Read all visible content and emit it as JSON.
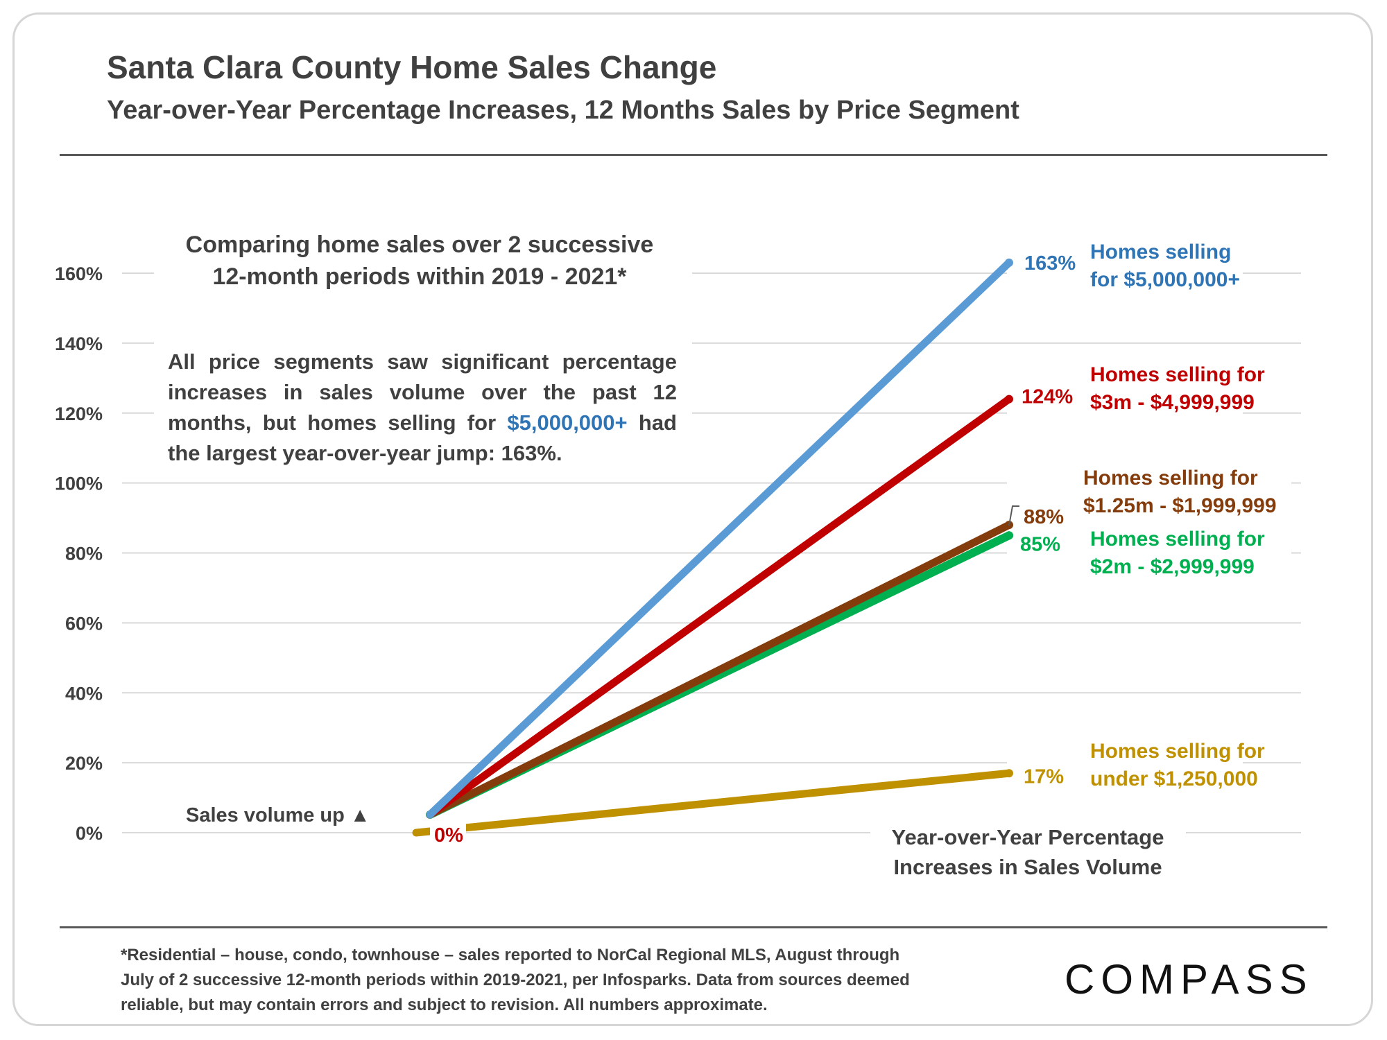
{
  "header": {
    "title": "Santa Clara County Home Sales Change",
    "subtitle": "Year-over-Year Percentage Increases, 12 Months Sales by Price Segment"
  },
  "annotations": {
    "intro_line1": "Comparing home sales over 2 successive",
    "intro_line2": "12-month periods within 2019 - 2021*",
    "body_part1": "All price segments saw significant percentage increases in sales volume over the past 12 months, but homes selling for ",
    "body_highlight": "$5,000,000+",
    "body_part2": " had",
    "body_last_line": "the largest year-over-year jump:  163%.",
    "sales_up": "Sales volume up ▲",
    "x_note_line1": "Year-over-Year Percentage",
    "x_note_line2": "Increases in Sales Volume",
    "origin_label": "0%"
  },
  "footer": {
    "line1": "*Residential – house, condo, townhouse – sales reported to NorCal Regional MLS, August through",
    "line2": "July of 2 successive 12-month periods within 2019-2021, per Infosparks. Data from sources deemed",
    "line3": "reliable, but may contain errors and subject to revision. All numbers  approximate.",
    "logo": "COMPASS"
  },
  "colors": {
    "blue": "#5b9bd5",
    "blue_text": "#2f75b5",
    "red": "#c00000",
    "brown": "#843c0c",
    "green": "#00b050",
    "gold": "#bf9000",
    "grid": "#d9d9d9",
    "axis_text": "#404040"
  },
  "chart_data": {
    "type": "line",
    "x": [
      "start",
      "end"
    ],
    "ylim": [
      0,
      160
    ],
    "ytick_labels": [
      "0%",
      "20%",
      "40%",
      "60%",
      "80%",
      "100%",
      "120%",
      "140%",
      "160%"
    ],
    "ytick_values": [
      0,
      20,
      40,
      60,
      80,
      100,
      120,
      140,
      160
    ],
    "grid": true,
    "series": [
      {
        "name": "Homes selling for $5,000,000+",
        "legend_lines": [
          "Homes selling",
          "for $5,000,000+"
        ],
        "values": [
          0,
          163
        ],
        "end_label": "163%",
        "color": "#5b9bd5",
        "text_color": "#2f75b5"
      },
      {
        "name": "Homes selling for $3m - $4,999,999",
        "legend_lines": [
          "Homes selling for",
          "$3m - $4,999,999"
        ],
        "values": [
          0,
          124
        ],
        "end_label": "124%",
        "color": "#c00000",
        "text_color": "#c00000"
      },
      {
        "name": "Homes selling for $2m - $2,999,999",
        "legend_lines": [
          "Homes selling for",
          "$2m - $2,999,999"
        ],
        "values": [
          0,
          85
        ],
        "end_label": "85%",
        "color": "#00b050",
        "text_color": "#00b050"
      },
      {
        "name": "Homes selling for $1.25m - $1,999,999",
        "legend_lines": [
          "Homes selling for",
          "$1.25m - $1,999,999"
        ],
        "values": [
          0,
          88
        ],
        "end_label": "88%",
        "color": "#843c0c",
        "text_color": "#843c0c"
      },
      {
        "name": "Homes selling for under $1,250,000",
        "legend_lines": [
          "Homes selling for",
          "under $1,250,000"
        ],
        "values": [
          0,
          17
        ],
        "end_label": "17%",
        "color": "#bf9000",
        "text_color": "#bf9000"
      }
    ]
  }
}
